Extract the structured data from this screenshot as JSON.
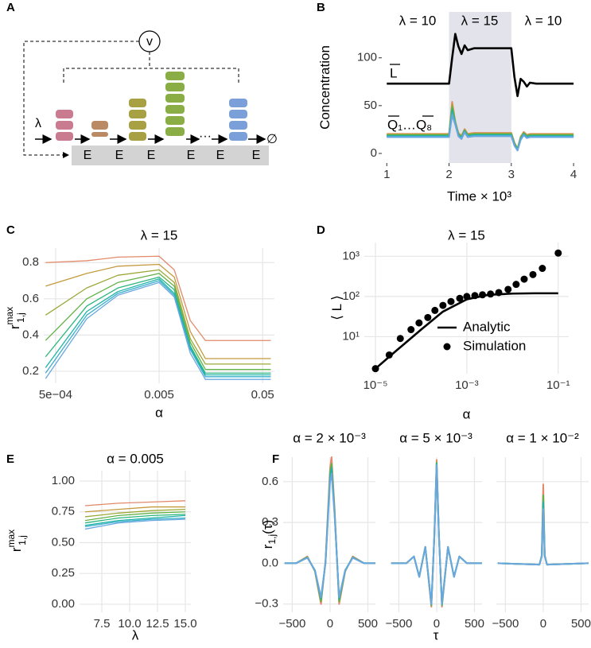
{
  "panel_labels": [
    "A",
    "B",
    "C",
    "D",
    "E",
    "F"
  ],
  "diagram": {
    "input": "λ",
    "controller": "v",
    "enzymes": [
      "E",
      "E",
      "E",
      "E",
      "E",
      "E"
    ],
    "ellipsis": "···",
    "output": "∅"
  },
  "chart_data": [
    {
      "type": "line",
      "grid": false,
      "shade": [
        2,
        3
      ],
      "annotations": [
        "λ = 10",
        "λ = 15",
        "λ = 10",
        "L",
        "Q₁…Q₈"
      ],
      "xlabel": "Time × 10³",
      "ylabel": [
        {
          "text": "Concentration"
        }
      ],
      "xlim": [
        0.92,
        4.05
      ],
      "xticks": [
        1,
        2,
        3,
        4
      ],
      "ylim": [
        -10,
        148
      ],
      "yticks": [
        0,
        50,
        100
      ],
      "x": [
        1,
        1.5,
        1.95,
        2.0,
        2.05,
        2.1,
        2.15,
        2.2,
        2.25,
        2.3,
        2.4,
        2.6,
        2.95,
        3.0,
        3.05,
        3.1,
        3.15,
        3.2,
        3.25,
        3.3,
        3.4,
        3.6,
        4
      ],
      "series": [
        {
          "color": "#E28A6B",
          "values": [
            20.5,
            20.5,
            20.5,
            20.5,
            54,
            33.5,
            21.5,
            18.5,
            25.5,
            20.5,
            21.5,
            21.5,
            21.5,
            21.5,
            11.5,
            5.1,
            17.5,
            22.5,
            19.5,
            20.5,
            20.5,
            20.5,
            20.5
          ]
        },
        {
          "color": "#C49A3D",
          "values": [
            20,
            20,
            20,
            20,
            52,
            33,
            21,
            18,
            25,
            20,
            21,
            21,
            21,
            21,
            11,
            4.8,
            17,
            22,
            19,
            20,
            20,
            20,
            20
          ]
        },
        {
          "color": "#9CA836",
          "values": [
            19.5,
            19.5,
            19.5,
            19.5,
            50,
            32.5,
            20.5,
            17.5,
            24.5,
            19.5,
            20.5,
            20.5,
            20.5,
            20.5,
            10.5,
            4.5,
            16.5,
            21.5,
            18.5,
            19.5,
            19.5,
            19.5,
            19.5
          ]
        },
        {
          "color": "#62B146",
          "values": [
            19,
            19,
            19,
            19,
            48,
            32,
            20,
            17,
            24,
            19,
            20,
            20,
            20,
            20,
            10,
            4.2,
            16,
            21,
            18,
            19,
            19,
            19,
            19
          ]
        },
        {
          "color": "#2CB57E",
          "values": [
            18.5,
            18.5,
            18.5,
            18.5,
            46,
            31.5,
            19.5,
            16.5,
            23.5,
            18.5,
            19.5,
            19.5,
            19.5,
            19.5,
            9.5,
            3.9,
            15.5,
            20.5,
            17.5,
            18.5,
            18.5,
            18.5,
            18.5
          ]
        },
        {
          "color": "#1FB3A6",
          "values": [
            18,
            18,
            18,
            18,
            44,
            31,
            19,
            16,
            23,
            18,
            19,
            19,
            19,
            19,
            9,
            3.6,
            15,
            20,
            17,
            18,
            18,
            18,
            18
          ]
        },
        {
          "color": "#3AAFCB",
          "values": [
            17.5,
            17.5,
            17.5,
            17.5,
            42,
            30.5,
            18.5,
            15.5,
            22.5,
            17.5,
            18.5,
            18.5,
            18.5,
            18.5,
            8.5,
            3.3,
            14.5,
            19.5,
            16.5,
            17.5,
            17.5,
            17.5,
            17.5
          ]
        },
        {
          "color": "#6AA7E0",
          "values": [
            17,
            17,
            17,
            17,
            40,
            30,
            18,
            15,
            22,
            17,
            18,
            18,
            18,
            18,
            8,
            3,
            14,
            19,
            16,
            17,
            17,
            17,
            17
          ]
        },
        {
          "color": "#000000",
          "values": [
            73,
            73,
            73,
            73,
            100,
            125,
            112,
            104,
            113,
            108,
            110,
            110,
            110,
            110,
            80,
            60,
            78,
            75,
            70,
            74,
            73,
            73,
            73
          ]
        }
      ]
    },
    {
      "type": "line",
      "grid": true,
      "log_x": true,
      "title": "λ = 15",
      "xlabel": "α",
      "ylabel": [
        {
          "text": "r"
        },
        {
          "text": "max",
          "shift": "sup"
        },
        {
          "text": "1,j",
          "shift": "sub"
        }
      ],
      "xlim": [
        0.000384,
        0.065
      ],
      "xticks": [
        {
          "value": 0.0005,
          "label": "5e−04"
        },
        0.005,
        0.05
      ],
      "ylim": [
        0.134,
        0.88
      ],
      "yticks": [
        0.2,
        0.4,
        0.6,
        0.8
      ],
      "x": [
        0.0004,
        0.001,
        0.002,
        0.005,
        0.007,
        0.01,
        0.014,
        0.06
      ],
      "series": [
        {
          "color": "#E28A6B",
          "values": [
            0.8,
            0.81,
            0.83,
            0.835,
            0.76,
            0.48,
            0.37,
            0.37
          ]
        },
        {
          "color": "#C49A3D",
          "values": [
            0.67,
            0.74,
            0.78,
            0.79,
            0.72,
            0.42,
            0.27,
            0.27
          ]
        },
        {
          "color": "#9CA836",
          "values": [
            0.51,
            0.66,
            0.73,
            0.76,
            0.69,
            0.38,
            0.24,
            0.24
          ]
        },
        {
          "color": "#62B146",
          "values": [
            0.37,
            0.6,
            0.69,
            0.74,
            0.67,
            0.36,
            0.21,
            0.21
          ]
        },
        {
          "color": "#2CB57E",
          "values": [
            0.28,
            0.56,
            0.66,
            0.72,
            0.65,
            0.34,
            0.19,
            0.19
          ]
        },
        {
          "color": "#1FB3A6",
          "values": [
            0.22,
            0.53,
            0.64,
            0.71,
            0.63,
            0.33,
            0.18,
            0.18
          ]
        },
        {
          "color": "#3AAFCB",
          "values": [
            0.19,
            0.51,
            0.63,
            0.7,
            0.62,
            0.32,
            0.17,
            0.17
          ]
        },
        {
          "color": "#6AA7E0",
          "values": [
            0.16,
            0.49,
            0.62,
            0.69,
            0.61,
            0.3,
            0.155,
            0.155
          ]
        }
      ]
    },
    {
      "type": "line",
      "grid": true,
      "log_x": true,
      "log_y": true,
      "legend": "right",
      "title": "λ = 15",
      "xlabel": "α",
      "ylabel": [
        {
          "text": "⟨ L ⟩"
        }
      ],
      "xlim": [
        5.7e-06,
        0.17
      ],
      "xticks": [
        {
          "value": 1e-05,
          "label": "10⁻⁵"
        },
        {
          "value": 0.001,
          "label": "10⁻³"
        },
        {
          "value": 0.1,
          "label": "10⁻¹"
        }
      ],
      "ylim": [
        1.2,
        2200
      ],
      "yticks": [
        {
          "value": 10,
          "label": "10¹"
        },
        {
          "value": 100,
          "label": "10²"
        },
        {
          "value": 1000,
          "label": "10³"
        }
      ],
      "series": [
        {
          "type": "line",
          "name": "Analytic",
          "color": "#000000",
          "x": [
            1e-05,
            3e-05,
            0.0001,
            0.0003,
            0.001,
            0.003,
            0.01,
            0.03,
            0.1
          ],
          "values": [
            1.6,
            4.7,
            15,
            42,
            85,
            110,
            118,
            120,
            120
          ]
        },
        {
          "type": "scatter",
          "name": "Simulation",
          "color": "#000000",
          "x": [
            1e-05,
            2e-05,
            3.5e-05,
            6e-05,
            9e-05,
            0.00014,
            0.0002,
            0.0003,
            0.00045,
            0.0007,
            0.001,
            0.0015,
            0.0022,
            0.0033,
            0.005,
            0.008,
            0.012,
            0.018,
            0.028,
            0.045,
            0.1
          ],
          "values": [
            1.6,
            3.5,
            9,
            15,
            22,
            30,
            45,
            60,
            75,
            90,
            100,
            105,
            110,
            115,
            125,
            150,
            200,
            270,
            350,
            500,
            1200
          ]
        }
      ]
    },
    {
      "type": "line",
      "grid": true,
      "title": "α = 0.005",
      "xlabel": "λ",
      "ylabel": [
        {
          "text": "r"
        },
        {
          "text": "max",
          "shift": "sup"
        },
        {
          "text": "1,j",
          "shift": "sub"
        }
      ],
      "xlim": [
        5.5,
        15.5
      ],
      "xticks": [
        7.5,
        {
          "value": 10,
          "label": "10.0"
        },
        12.5,
        {
          "value": 15,
          "label": "15.0"
        }
      ],
      "ylim": [
        -0.065,
        1.084
      ],
      "yticks": [
        {
          "value": 0,
          "label": "0.00"
        },
        {
          "value": 0.25,
          "label": "0.25"
        },
        {
          "value": 0.5,
          "label": "0.50"
        },
        {
          "value": 0.75,
          "label": "0.75"
        },
        {
          "value": 1,
          "label": "1.00"
        }
      ],
      "x": [
        6,
        9,
        12,
        15
      ],
      "series": [
        {
          "color": "#E28A6B",
          "values": [
            0.8,
            0.82,
            0.83,
            0.84
          ]
        },
        {
          "color": "#C49A3D",
          "values": [
            0.75,
            0.77,
            0.79,
            0.79
          ]
        },
        {
          "color": "#9CA836",
          "values": [
            0.71,
            0.74,
            0.76,
            0.77
          ]
        },
        {
          "color": "#62B146",
          "values": [
            0.68,
            0.72,
            0.74,
            0.75
          ]
        },
        {
          "color": "#2CB57E",
          "values": [
            0.66,
            0.7,
            0.72,
            0.73
          ]
        },
        {
          "color": "#1FB3A6",
          "values": [
            0.64,
            0.68,
            0.7,
            0.72
          ]
        },
        {
          "color": "#3AAFCB",
          "values": [
            0.63,
            0.67,
            0.69,
            0.7
          ]
        },
        {
          "color": "#6AA7E0",
          "values": [
            0.61,
            0.66,
            0.68,
            0.69
          ]
        }
      ]
    },
    {
      "type": "line",
      "grid": true,
      "title": "α = 2 × 10⁻³",
      "ylabel": [
        {
          "text": "r"
        },
        {
          "text": "1,j",
          "shift": "sub"
        },
        {
          "text": "(τ)"
        }
      ],
      "xlim": [
        -620,
        600
      ],
      "xticks": [
        {
          "value": -500,
          "label": "−500"
        },
        0,
        500
      ],
      "ylim": [
        -0.36,
        0.78
      ],
      "yticks": [
        {
          "value": -0.3,
          "label": "−0.3"
        },
        {
          "value": 0,
          "label": "0.0"
        },
        0.3,
        0.6
      ],
      "x": [
        -600,
        -450,
        -300,
        -200,
        -120,
        -60,
        0,
        20,
        60,
        120,
        200,
        300,
        450,
        600
      ],
      "series": [
        {
          "color": "#E28A6B",
          "values": [
            0,
            0,
            0.05,
            -0.06,
            -0.3,
            0.02,
            0.7,
            0.78,
            0.4,
            -0.3,
            -0.06,
            0.05,
            0,
            0
          ]
        },
        {
          "color": "#62B146",
          "values": [
            0,
            0,
            0.045,
            -0.055,
            -0.28,
            0.01,
            0.66,
            0.73,
            0.38,
            -0.28,
            -0.055,
            0.045,
            0,
            0
          ]
        },
        {
          "color": "#1FB3A6",
          "values": [
            0,
            0,
            0.042,
            -0.052,
            -0.26,
            0.005,
            0.63,
            0.7,
            0.36,
            -0.26,
            -0.052,
            0.042,
            0,
            0
          ]
        },
        {
          "color": "#6AA7E0",
          "values": [
            0,
            0,
            0.04,
            -0.05,
            -0.25,
            0,
            0.6,
            0.66,
            0.35,
            -0.25,
            -0.05,
            0.04,
            0,
            0
          ]
        }
      ]
    },
    {
      "type": "line",
      "grid": true,
      "title": "α = 5 × 10⁻³",
      "xlabel": "τ",
      "xlim": [
        -620,
        600
      ],
      "xticks": [
        {
          "value": -500,
          "label": "−500"
        },
        0,
        500
      ],
      "ylim": [
        -0.36,
        0.78
      ],
      "yticks": [
        -0.3,
        0,
        0.3,
        0.6
      ],
      "x": [
        -600,
        -400,
        -300,
        -230,
        -150,
        -70,
        -30,
        0,
        30,
        70,
        150,
        230,
        300,
        400,
        600
      ],
      "series": [
        {
          "color": "#E28A6B",
          "values": [
            0,
            0,
            0.05,
            -0.1,
            0.12,
            -0.32,
            0.22,
            0.76,
            0.22,
            -0.32,
            0.12,
            -0.1,
            0.05,
            0,
            0
          ]
        },
        {
          "color": "#62B146",
          "values": [
            0,
            0,
            0.05,
            -0.1,
            0.12,
            -0.31,
            0.21,
            0.74,
            0.21,
            -0.31,
            0.12,
            -0.1,
            0.05,
            0,
            0
          ]
        },
        {
          "color": "#1FB3A6",
          "values": [
            0,
            0,
            0.05,
            -0.1,
            0.12,
            -0.3,
            0.2,
            0.73,
            0.2,
            -0.3,
            0.12,
            -0.1,
            0.05,
            0,
            0
          ]
        },
        {
          "color": "#6AA7E0",
          "values": [
            0,
            0,
            0.05,
            -0.1,
            0.12,
            -0.3,
            0.2,
            0.72,
            0.2,
            -0.3,
            0.12,
            -0.1,
            0.05,
            0,
            0
          ]
        }
      ]
    },
    {
      "type": "line",
      "grid": true,
      "title": "α = 1 × 10⁻²",
      "xlim": [
        -620,
        600
      ],
      "xticks": [
        {
          "value": -500,
          "label": "−500"
        },
        0,
        500
      ],
      "ylim": [
        -0.36,
        0.78
      ],
      "yticks": [
        -0.3,
        0,
        0.3,
        0.6
      ],
      "x": [
        -600,
        -50,
        -20,
        0,
        20,
        50,
        600
      ],
      "series": [
        {
          "color": "#E28A6B",
          "values": [
            0,
            -0.01,
            0.06,
            0.58,
            0.06,
            -0.01,
            0
          ]
        },
        {
          "color": "#62B146",
          "values": [
            0,
            -0.01,
            0.055,
            0.5,
            0.055,
            -0.01,
            0
          ]
        },
        {
          "color": "#1FB3A6",
          "values": [
            0,
            -0.01,
            0.05,
            0.45,
            0.05,
            -0.01,
            0
          ]
        },
        {
          "color": "#6AA7E0",
          "values": [
            0,
            -0.01,
            0.05,
            0.4,
            0.05,
            -0.01,
            0
          ]
        }
      ]
    }
  ]
}
